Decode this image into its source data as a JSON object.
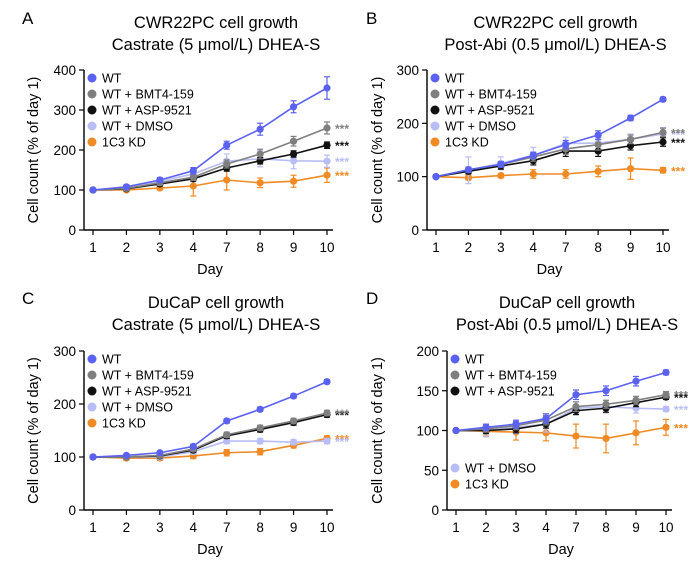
{
  "chart_data": [
    {
      "panel_label": "A",
      "type": "line",
      "title": "CWR22PC cell growth",
      "subtitle": "Castrate (5 μmol/L) DHEA-S",
      "xlabel": "Day",
      "ylabel": "Cell count (% of day 1)",
      "categories": [
        "1",
        "2",
        "3",
        "4",
        "7",
        "8",
        "9",
        "10"
      ],
      "ylim": [
        0,
        400
      ],
      "yticks": [
        0,
        100,
        200,
        300,
        400
      ],
      "legend_position": "top-left",
      "series": [
        {
          "name": "WT",
          "color": "#5b61f0",
          "values": [
            100,
            108,
            125,
            148,
            212,
            252,
            308,
            355
          ],
          "errors": [
            0,
            5,
            6,
            8,
            10,
            15,
            15,
            28
          ],
          "significance": ""
        },
        {
          "name": "WT + BMT4-159",
          "color": "#7f7f7f",
          "values": [
            100,
            104,
            118,
            132,
            165,
            190,
            222,
            255
          ],
          "errors": [
            0,
            5,
            6,
            8,
            10,
            12,
            12,
            15
          ],
          "significance": "***"
        },
        {
          "name": "WT + ASP-9521",
          "color": "#111111",
          "values": [
            100,
            103,
            115,
            128,
            155,
            173,
            190,
            212
          ],
          "errors": [
            0,
            4,
            5,
            6,
            8,
            8,
            8,
            8
          ],
          "significance": "***"
        },
        {
          "name": "WT + DMSO",
          "color": "#b9bdf5",
          "values": [
            100,
            105,
            122,
            140,
            172,
            178,
            173,
            172
          ],
          "errors": [
            0,
            5,
            6,
            10,
            18,
            20,
            20,
            15
          ],
          "significance": "***"
        },
        {
          "name": "1C3 KD",
          "color": "#f08a24",
          "values": [
            100,
            100,
            105,
            110,
            125,
            118,
            122,
            137
          ],
          "errors": [
            0,
            4,
            5,
            25,
            25,
            12,
            15,
            18
          ],
          "significance": "***"
        }
      ]
    },
    {
      "panel_label": "B",
      "type": "line",
      "title": "CWR22PC cell growth",
      "subtitle": "Post-Abi (0.5 μmol/L) DHEA-S",
      "xlabel": "Day",
      "ylabel": "Cell count (% of day 1)",
      "categories": [
        "1",
        "2",
        "3",
        "4",
        "7",
        "8",
        "9",
        "10"
      ],
      "ylim": [
        0,
        300
      ],
      "yticks": [
        0,
        100,
        200,
        300
      ],
      "legend_position": "top-left",
      "series": [
        {
          "name": "WT",
          "color": "#5b61f0",
          "values": [
            100,
            113,
            123,
            140,
            160,
            178,
            210,
            245
          ],
          "errors": [
            0,
            5,
            5,
            6,
            8,
            8,
            5,
            4
          ],
          "significance": ""
        },
        {
          "name": "WT + BMT4-159",
          "color": "#7f7f7f",
          "values": [
            100,
            113,
            123,
            137,
            152,
            160,
            170,
            183
          ],
          "errors": [
            0,
            5,
            5,
            8,
            10,
            10,
            8,
            8
          ],
          "significance": "***"
        },
        {
          "name": "WT + ASP-9521",
          "color": "#111111",
          "values": [
            100,
            110,
            120,
            130,
            148,
            148,
            158,
            165
          ],
          "errors": [
            0,
            5,
            6,
            8,
            10,
            10,
            8,
            8
          ],
          "significance": "***"
        },
        {
          "name": "WT + DMSO",
          "color": "#b9bdf5",
          "values": [
            100,
            112,
            125,
            140,
            162,
            163,
            170,
            180
          ],
          "errors": [
            0,
            25,
            12,
            15,
            12,
            12,
            10,
            12
          ],
          "significance": "***"
        },
        {
          "name": "1C3 KD",
          "color": "#f08a24",
          "values": [
            100,
            98,
            102,
            105,
            105,
            110,
            115,
            112
          ],
          "errors": [
            0,
            4,
            4,
            8,
            8,
            10,
            20,
            5
          ],
          "significance": "***"
        }
      ]
    },
    {
      "panel_label": "C",
      "type": "line",
      "title": "DuCaP cell growth",
      "subtitle": "Castrate (5 μmol/L) DHEA-S",
      "xlabel": "Day",
      "ylabel": "Cell count (% of day 1)",
      "categories": [
        "1",
        "2",
        "3",
        "4",
        "7",
        "8",
        "9",
        "10"
      ],
      "ylim": [
        0,
        300
      ],
      "yticks": [
        0,
        100,
        200,
        300
      ],
      "legend_position": "top-left",
      "series": [
        {
          "name": "WT",
          "color": "#5b61f0",
          "values": [
            100,
            103,
            108,
            120,
            168,
            190,
            215,
            242
          ],
          "errors": [
            0,
            3,
            3,
            4,
            4,
            4,
            4,
            4
          ],
          "significance": ""
        },
        {
          "name": "WT + BMT4-159",
          "color": "#7f7f7f",
          "values": [
            100,
            100,
            103,
            115,
            142,
            155,
            168,
            183
          ],
          "errors": [
            0,
            3,
            3,
            4,
            5,
            5,
            5,
            5
          ],
          "significance": "***"
        },
        {
          "name": "WT + ASP-9521",
          "color": "#111111",
          "values": [
            100,
            100,
            102,
            113,
            140,
            152,
            165,
            180
          ],
          "errors": [
            0,
            3,
            3,
            4,
            5,
            5,
            5,
            5
          ],
          "significance": "***"
        },
        {
          "name": "WT + DMSO",
          "color": "#b9bdf5",
          "values": [
            100,
            100,
            100,
            110,
            130,
            130,
            128,
            130
          ],
          "errors": [
            0,
            3,
            3,
            4,
            5,
            5,
            5,
            5
          ],
          "significance": "***"
        },
        {
          "name": "1C3 KD",
          "color": "#f08a24",
          "values": [
            100,
            98,
            98,
            102,
            108,
            110,
            122,
            135
          ],
          "errors": [
            0,
            4,
            4,
            5,
            6,
            6,
            5,
            5
          ],
          "significance": "***"
        }
      ]
    },
    {
      "panel_label": "D",
      "type": "line",
      "title": "DuCaP cell growth",
      "subtitle": "Post-Abi (0.5 μmol/L) DHEA-S",
      "xlabel": "Day",
      "ylabel": "Cell count (% of day 1)",
      "categories": [
        "1",
        "2",
        "3",
        "4",
        "7",
        "8",
        "9",
        "10"
      ],
      "ylim": [
        0,
        200
      ],
      "yticks": [
        0,
        50,
        100,
        150,
        200
      ],
      "legend_position": "top-left / bottom-left",
      "series": [
        {
          "name": "WT",
          "color": "#5b61f0",
          "values": [
            100,
            104,
            108,
            115,
            145,
            150,
            162,
            173
          ],
          "errors": [
            0,
            4,
            5,
            6,
            6,
            6,
            6,
            3
          ],
          "significance": ""
        },
        {
          "name": "WT + BMT4-159",
          "color": "#7f7f7f",
          "values": [
            100,
            102,
            106,
            113,
            130,
            133,
            138,
            145
          ],
          "errors": [
            0,
            4,
            5,
            6,
            6,
            5,
            5,
            4
          ],
          "significance": "***"
        },
        {
          "name": "WT + ASP-9521",
          "color": "#111111",
          "values": [
            100,
            100,
            102,
            108,
            125,
            128,
            135,
            142
          ],
          "errors": [
            0,
            4,
            5,
            5,
            5,
            5,
            5,
            3
          ],
          "significance": "***"
        },
        {
          "name": "WT + DMSO",
          "color": "#b9bdf5",
          "values": [
            100,
            100,
            104,
            108,
            128,
            130,
            128,
            127
          ],
          "errors": [
            0,
            8,
            8,
            10,
            8,
            8,
            6,
            3
          ],
          "significance": "***"
        },
        {
          "name": "1C3 KD",
          "color": "#f08a24",
          "values": [
            100,
            99,
            98,
            97,
            93,
            90,
            97,
            104
          ],
          "errors": [
            0,
            6,
            10,
            10,
            15,
            18,
            15,
            10
          ],
          "significance": "***"
        }
      ]
    }
  ]
}
